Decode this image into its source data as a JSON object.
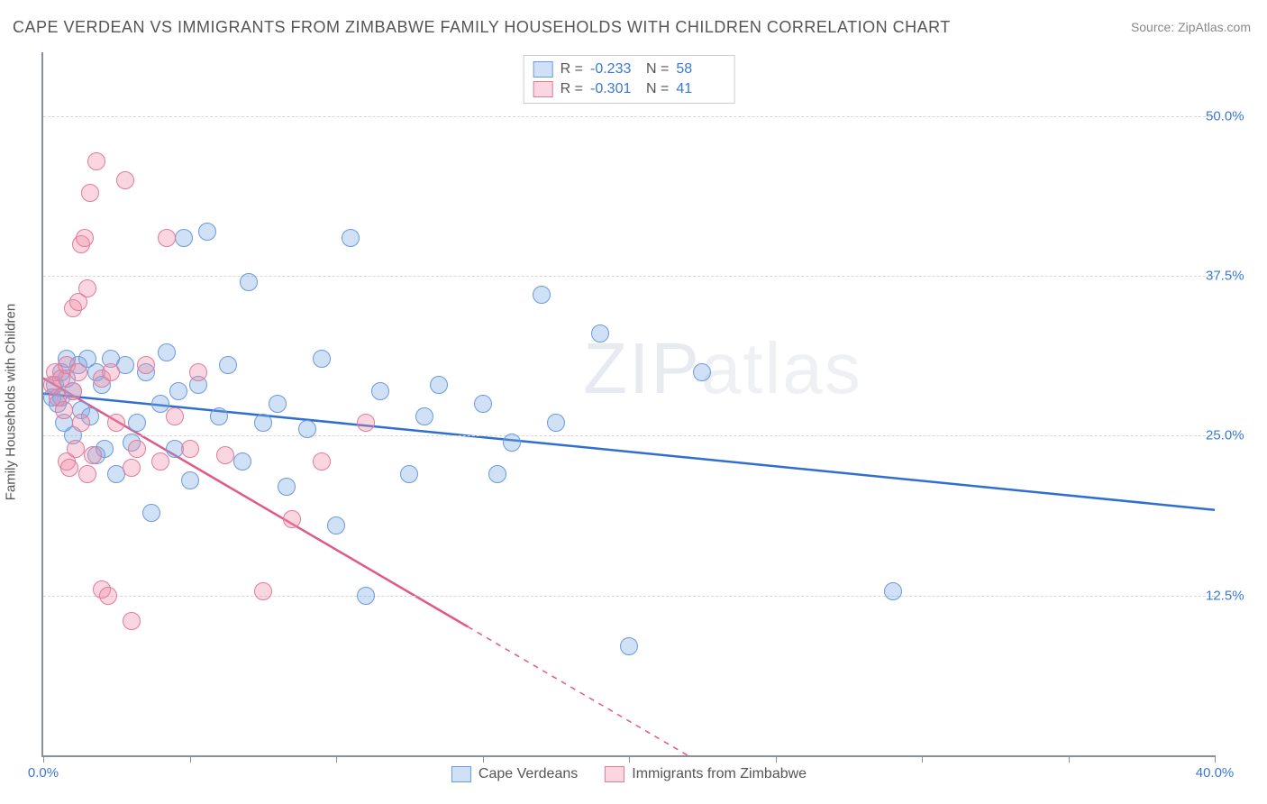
{
  "title": "CAPE VERDEAN VS IMMIGRANTS FROM ZIMBABWE FAMILY HOUSEHOLDS WITH CHILDREN CORRELATION CHART",
  "source": "Source: ZipAtlas.com",
  "ylabel": "Family Households with Children",
  "watermark_bold": "ZIP",
  "watermark_thin": "atlas",
  "chart": {
    "type": "scatter",
    "xlim": [
      0,
      40
    ],
    "ylim": [
      0,
      55
    ],
    "x_ticks": [
      0,
      5,
      10,
      15,
      20,
      25,
      30,
      35,
      40
    ],
    "x_tick_labels": {
      "0": "0.0%",
      "40": "40.0%"
    },
    "y_gridlines": [
      12.5,
      25.0,
      37.5,
      50.0
    ],
    "y_tick_labels": [
      "12.5%",
      "25.0%",
      "37.5%",
      "50.0%"
    ],
    "background_color": "#ffffff",
    "grid_color": "#d8d8d8",
    "axis_color": "#8a8f99",
    "tick_label_color": "#3a78d6",
    "marker_radius": 9,
    "marker_stroke_width": 1.5,
    "trend_line_width": 2.5
  },
  "series": [
    {
      "key": "cape_verdeans",
      "label": "Cape Verdeans",
      "fill": "rgba(120,165,225,0.35)",
      "stroke": "#6a9be0",
      "line_color": "#2f6fd0",
      "R": "-0.233",
      "N": "58",
      "trend": {
        "x1": 0,
        "y1": 28.3,
        "x2": 40,
        "y2": 19.2,
        "dash_from_x": null
      },
      "points": [
        [
          0.3,
          28.0
        ],
        [
          0.4,
          29.0
        ],
        [
          0.5,
          27.5
        ],
        [
          0.6,
          28.0
        ],
        [
          0.6,
          30.0
        ],
        [
          0.7,
          26.0
        ],
        [
          0.8,
          31.0
        ],
        [
          0.8,
          29.5
        ],
        [
          1.0,
          28.5
        ],
        [
          1.0,
          25.0
        ],
        [
          1.2,
          30.5
        ],
        [
          1.3,
          27.0
        ],
        [
          1.5,
          31.0
        ],
        [
          1.6,
          26.5
        ],
        [
          1.8,
          30.0
        ],
        [
          1.8,
          23.5
        ],
        [
          2.0,
          29.0
        ],
        [
          2.1,
          24.0
        ],
        [
          2.3,
          31.0
        ],
        [
          2.5,
          22.0
        ],
        [
          2.8,
          30.5
        ],
        [
          3.0,
          24.5
        ],
        [
          3.2,
          26.0
        ],
        [
          3.5,
          30.0
        ],
        [
          3.7,
          19.0
        ],
        [
          4.0,
          27.5
        ],
        [
          4.2,
          31.5
        ],
        [
          4.5,
          24.0
        ],
        [
          4.8,
          40.5
        ],
        [
          5.0,
          21.5
        ],
        [
          5.3,
          29.0
        ],
        [
          5.6,
          41.0
        ],
        [
          6.0,
          26.5
        ],
        [
          6.3,
          30.5
        ],
        [
          7.0,
          37.0
        ],
        [
          7.5,
          26.0
        ],
        [
          8.0,
          27.5
        ],
        [
          8.3,
          21.0
        ],
        [
          9.0,
          25.5
        ],
        [
          10.0,
          18.0
        ],
        [
          10.5,
          40.5
        ],
        [
          11.0,
          12.5
        ],
        [
          11.5,
          28.5
        ],
        [
          12.5,
          22.0
        ],
        [
          13.0,
          26.5
        ],
        [
          13.5,
          29.0
        ],
        [
          15.0,
          27.5
        ],
        [
          15.5,
          22.0
        ],
        [
          16.0,
          24.5
        ],
        [
          17.0,
          36.0
        ],
        [
          17.5,
          26.0
        ],
        [
          19.0,
          33.0
        ],
        [
          20.0,
          8.5
        ],
        [
          22.5,
          30.0
        ],
        [
          29.0,
          12.8
        ],
        [
          9.5,
          31.0
        ],
        [
          6.8,
          23.0
        ],
        [
          4.6,
          28.5
        ]
      ]
    },
    {
      "key": "zimbabwe",
      "label": "Immigrants from Zimbabwe",
      "fill": "rgba(240,140,165,0.35)",
      "stroke": "#e47a9a",
      "line_color": "#e05a85",
      "R": "-0.301",
      "N": "41",
      "trend": {
        "x1": 0,
        "y1": 29.5,
        "x2": 22,
        "y2": 0,
        "dash_from_x": 14.5
      },
      "points": [
        [
          0.3,
          29.0
        ],
        [
          0.4,
          30.0
        ],
        [
          0.5,
          28.0
        ],
        [
          0.6,
          29.5
        ],
        [
          0.7,
          27.0
        ],
        [
          0.8,
          30.5
        ],
        [
          0.8,
          23.0
        ],
        [
          0.9,
          22.5
        ],
        [
          1.0,
          28.5
        ],
        [
          1.0,
          35.0
        ],
        [
          1.1,
          24.0
        ],
        [
          1.2,
          30.0
        ],
        [
          1.2,
          35.5
        ],
        [
          1.3,
          26.0
        ],
        [
          1.3,
          40.0
        ],
        [
          1.4,
          40.5
        ],
        [
          1.5,
          22.0
        ],
        [
          1.5,
          36.5
        ],
        [
          1.6,
          44.0
        ],
        [
          1.7,
          23.5
        ],
        [
          1.8,
          46.5
        ],
        [
          2.0,
          29.5
        ],
        [
          2.0,
          13.0
        ],
        [
          2.2,
          12.5
        ],
        [
          2.3,
          30.0
        ],
        [
          2.5,
          26.0
        ],
        [
          2.8,
          45.0
        ],
        [
          3.0,
          22.5
        ],
        [
          3.0,
          10.5
        ],
        [
          3.2,
          24.0
        ],
        [
          3.5,
          30.5
        ],
        [
          4.0,
          23.0
        ],
        [
          4.2,
          40.5
        ],
        [
          4.5,
          26.5
        ],
        [
          5.0,
          24.0
        ],
        [
          5.3,
          30.0
        ],
        [
          6.2,
          23.5
        ],
        [
          7.5,
          12.8
        ],
        [
          8.5,
          18.5
        ],
        [
          9.5,
          23.0
        ],
        [
          11.0,
          26.0
        ]
      ]
    }
  ],
  "legend_top_labels": {
    "R": "R =",
    "N": "N ="
  },
  "legend_bottom": [
    {
      "series": "cape_verdeans"
    },
    {
      "series": "zimbabwe"
    }
  ]
}
